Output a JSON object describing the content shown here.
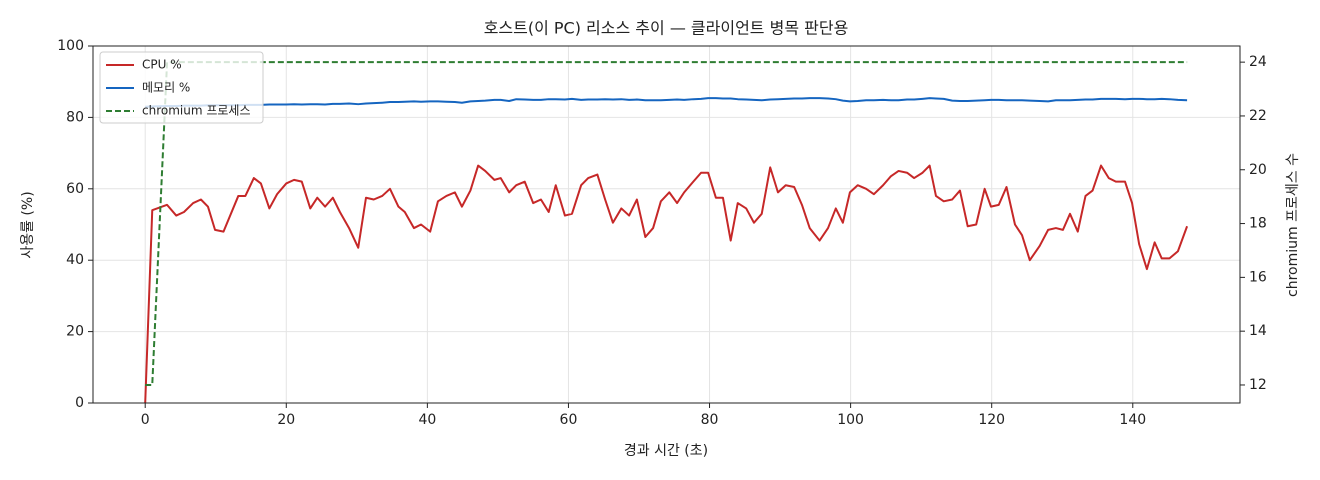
{
  "chart_data": {
    "type": "line",
    "title": "호스트(이 PC) 리소스 추이 — 클라이언트 병목 판단용",
    "xlabel": "경과 시간 (초)",
    "ylabel": "사용률 (%)",
    "y2label": "chromium 프로세스 수",
    "x": [
      0,
      1.0,
      3.1,
      4.4,
      5.5,
      6.8,
      7.9,
      8.9,
      9.9,
      11.1,
      13.2,
      14.2,
      15.4,
      16.4,
      17.6,
      18.7,
      20.0,
      21.1,
      22.2,
      23.4,
      24.4,
      25.5,
      26.6,
      27.6,
      28.9,
      30.2,
      31.3,
      32.4,
      33.6,
      34.7,
      35.9,
      36.8,
      38.1,
      39.1,
      40.4,
      41.5,
      42.7,
      43.9,
      44.9,
      46.1,
      47.2,
      48.2,
      49.5,
      50.4,
      51.6,
      52.6,
      53.8,
      55.0,
      56.1,
      57.2,
      58.2,
      59.5,
      60.5,
      61.8,
      62.8,
      64.1,
      65.2,
      66.3,
      67.5,
      68.6,
      69.7,
      70.9,
      72.0,
      73.1,
      74.3,
      75.4,
      76.4,
      77.7,
      78.8,
      79.8,
      80.9,
      81.9,
      83.0,
      84.0,
      85.2,
      86.3,
      87.4,
      88.6,
      89.7,
      90.8,
      92.0,
      93.1,
      94.2,
      95.6,
      96.8,
      97.9,
      98.9,
      99.9,
      101.0,
      102.2,
      103.3,
      104.6,
      105.7,
      106.8,
      108.0,
      109.0,
      110.2,
      111.2,
      112.1,
      113.2,
      114.4,
      115.5,
      116.6,
      117.8,
      119.0,
      119.9,
      121.0,
      122.1,
      123.3,
      124.3,
      125.4,
      126.8,
      128.0,
      129.1,
      130.1,
      131.1,
      132.2,
      133.3,
      134.3,
      135.5,
      136.6,
      137.6,
      138.9,
      139.9,
      140.9,
      142.0,
      143.1,
      144.1,
      145.2,
      146.4,
      147.7
    ],
    "series": [
      {
        "name": "CPU %",
        "color": "#c62828",
        "axis": "y",
        "values": [
          0,
          54,
          55.5,
          52.5,
          53.5,
          56,
          57,
          55,
          48.5,
          48,
          58,
          58,
          63,
          61.5,
          54.5,
          58.5,
          61.5,
          62.5,
          62,
          54.5,
          57.5,
          55,
          57.5,
          53.5,
          49,
          43.5,
          57.5,
          57,
          58,
          60,
          55,
          53.5,
          49,
          50,
          48,
          56.5,
          58,
          59,
          55,
          59.5,
          66.5,
          65,
          62.5,
          63,
          59,
          61,
          62,
          56,
          57,
          53.5,
          61,
          52.5,
          53,
          61,
          63,
          64,
          57,
          50.5,
          54.5,
          52.5,
          57,
          46.5,
          49,
          56.5,
          59,
          56,
          59,
          62,
          64.5,
          64.5,
          57.5,
          57.5,
          45.5,
          56,
          54.5,
          50.5,
          53,
          66,
          59,
          61,
          60.5,
          55.5,
          49,
          45.5,
          49,
          54.5,
          50.5,
          59,
          61,
          60,
          58.5,
          61,
          63.5,
          65,
          64.5,
          63,
          64.5,
          66.5,
          58,
          56.5,
          57,
          59.5,
          49.5,
          50,
          60,
          55,
          55.5,
          60.5,
          50,
          47,
          40,
          44,
          48.5,
          49,
          48.5,
          53,
          48,
          58,
          59.5,
          66.5,
          63,
          62,
          62,
          56,
          44.5,
          37.5,
          45,
          40.5,
          40.5,
          42.5,
          49.5
        ]
      },
      {
        "name": "메모리 %",
        "color": "#1565c0",
        "axis": "y",
        "values": [
          83,
          83.1,
          83.2,
          83.2,
          83.3,
          83.3,
          83.3,
          83.4,
          83.4,
          83.4,
          83.4,
          83.5,
          83.5,
          83.5,
          83.6,
          83.6,
          83.6,
          83.7,
          83.6,
          83.7,
          83.7,
          83.6,
          83.8,
          83.8,
          83.9,
          83.7,
          83.9,
          84,
          84.1,
          84.3,
          84.3,
          84.4,
          84.5,
          84.4,
          84.5,
          84.5,
          84.4,
          84.3,
          84.1,
          84.5,
          84.6,
          84.7,
          84.9,
          84.9,
          84.6,
          85.1,
          85,
          84.9,
          84.9,
          85.1,
          85.1,
          85,
          85.2,
          84.9,
          85,
          85,
          85.1,
          85,
          85.1,
          84.9,
          85,
          84.8,
          84.8,
          84.8,
          84.9,
          85,
          84.9,
          85.1,
          85.2,
          85.4,
          85.4,
          85.3,
          85.3,
          85.1,
          85,
          84.9,
          84.8,
          85,
          85.1,
          85.2,
          85.3,
          85.3,
          85.4,
          85.4,
          85.3,
          85.1,
          84.7,
          84.5,
          84.6,
          84.8,
          84.8,
          84.9,
          84.8,
          84.8,
          85,
          85,
          85.2,
          85.4,
          85.3,
          85.2,
          84.7,
          84.6,
          84.6,
          84.7,
          84.8,
          84.9,
          84.9,
          84.8,
          84.8,
          84.8,
          84.7,
          84.6,
          84.5,
          84.8,
          84.8,
          84.8,
          84.9,
          85,
          85,
          85.2,
          85.2,
          85.2,
          85.1,
          85.2,
          85.2,
          85.1,
          85.1,
          85.2,
          85.1,
          84.9,
          84.8
        ]
      },
      {
        "name": "chromium 프로세스",
        "color": "#2e7d32",
        "axis": "y2",
        "dashed": true,
        "values": [
          12,
          12,
          24,
          24,
          24,
          24,
          24,
          24,
          24,
          24,
          24,
          24,
          24,
          24,
          24,
          24,
          24,
          24,
          24,
          24,
          24,
          24,
          24,
          24,
          24,
          24,
          24,
          24,
          24,
          24,
          24,
          24,
          24,
          24,
          24,
          24,
          24,
          24,
          24,
          24,
          24,
          24,
          24,
          24,
          24,
          24,
          24,
          24,
          24,
          24,
          24,
          24,
          24,
          24,
          24,
          24,
          24,
          24,
          24,
          24,
          24,
          24,
          24,
          24,
          24,
          24,
          24,
          24,
          24,
          24,
          24,
          24,
          24,
          24,
          24,
          24,
          24,
          24,
          24,
          24,
          24,
          24,
          24,
          24,
          24,
          24,
          24,
          24,
          24,
          24,
          24,
          24,
          24,
          24,
          24,
          24,
          24,
          24,
          24,
          24,
          24,
          24,
          24,
          24,
          24,
          24,
          24,
          24,
          24,
          24,
          24,
          24,
          24,
          24,
          24,
          24,
          24,
          24,
          24,
          24,
          24,
          24,
          24,
          24,
          24,
          24,
          24,
          24,
          24,
          24,
          24
        ]
      }
    ],
    "xlim": [
      -7.4,
      155.2
    ],
    "xticks": [
      0,
      20,
      40,
      60,
      80,
      100,
      120,
      140
    ],
    "ylim": [
      0,
      100
    ],
    "yticks": [
      0,
      20,
      40,
      60,
      80,
      100
    ],
    "y2lim": [
      11.33,
      24.6
    ],
    "y2ticks": [
      12,
      14,
      16,
      18,
      20,
      22,
      24
    ],
    "grid": true,
    "legend": "upper-left"
  }
}
